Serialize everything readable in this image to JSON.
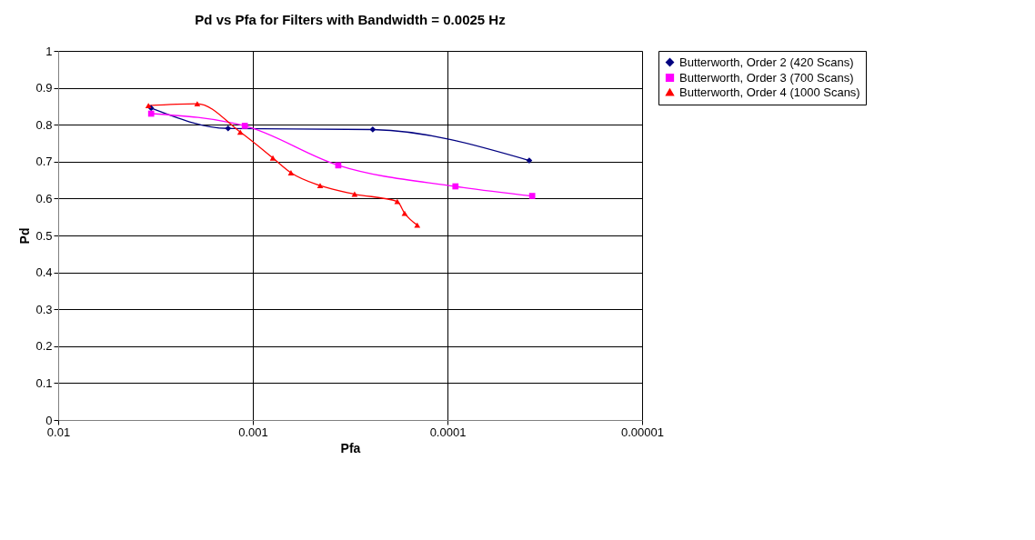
{
  "chart_data": {
    "type": "line",
    "title": "Pd vs Pfa for Filters with Bandwidth = 0.0025 Hz",
    "xlabel": "Pfa",
    "ylabel": "Pd",
    "log": "x",
    "xlim": [
      0.01,
      1e-05
    ],
    "xticks": [
      0.01,
      0.001,
      0.0001,
      {
        "value": 1e-05,
        "label": "0.00001"
      }
    ],
    "ylim": [
      0,
      1
    ],
    "yticks": [
      0,
      0.1,
      0.2,
      0.3,
      0.4,
      0.5,
      0.6,
      0.7,
      0.8,
      0.9,
      1
    ],
    "grid": true,
    "legend": "right",
    "series": [
      {
        "name": "Butterworth, Order 2 (420 Scans)",
        "color": "#000080",
        "marker": "diamond",
        "x": [
          0.00333,
          0.00134,
          0.000242,
          3.8e-05
        ],
        "values": [
          0.845,
          0.79,
          0.787,
          0.703
        ]
      },
      {
        "name": "Butterworth, Order 3 (700 Scans)",
        "color": "#ff00ff",
        "marker": "square",
        "x": [
          0.00333,
          0.0011,
          0.000364,
          9.1e-05,
          3.67e-05
        ],
        "values": [
          0.83,
          0.797,
          0.69,
          0.633,
          0.607
        ]
      },
      {
        "name": "Butterworth, Order 4 (1000 Scans)",
        "color": "#ff0000",
        "marker": "triangle",
        "x": [
          0.00344,
          0.00193,
          0.00116,
          0.000789,
          0.000637,
          0.000451,
          0.0003,
          0.000181,
          0.000166,
          0.000143
        ],
        "values": [
          0.852,
          0.857,
          0.78,
          0.71,
          0.67,
          0.635,
          0.612,
          0.592,
          0.56,
          0.528
        ]
      }
    ]
  }
}
